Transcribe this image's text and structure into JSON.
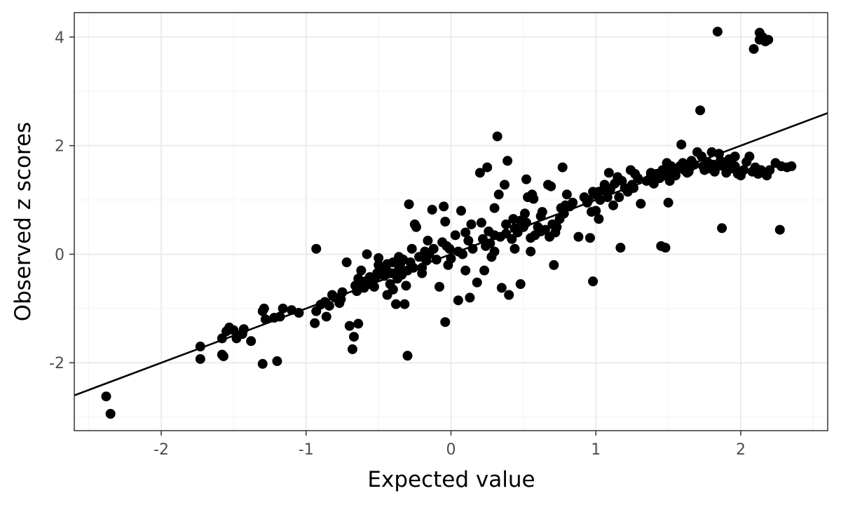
{
  "chart_data": {
    "type": "scatter",
    "xlabel": "Expected value",
    "ylabel": "Observed z scores",
    "xlim": [
      -2.6,
      2.6
    ],
    "ylim": [
      -3.25,
      4.45
    ],
    "x_ticks": [
      -2,
      -1,
      0,
      1,
      2
    ],
    "y_ticks": [
      -2,
      0,
      2,
      4
    ],
    "x_tick_labels": [
      "-2",
      "-1",
      "0",
      "1",
      "2"
    ],
    "y_tick_labels": [
      "-2",
      "0",
      "2",
      "4"
    ],
    "grid": true,
    "legend": "none",
    "point_color": "#000000",
    "line_color": "#000000",
    "panel_border_color": "#333333",
    "grid_major_color": "#ebebeb",
    "grid_minor_color": "#f4f4f4",
    "reference_line": {
      "intercept": 0.0,
      "slope": 1.0
    },
    "points": [
      [
        -2.38,
        -2.62
      ],
      [
        -2.35,
        -2.94
      ],
      [
        -1.73,
        -1.7
      ],
      [
        -1.73,
        -1.93
      ],
      [
        -1.58,
        -1.85
      ],
      [
        -1.57,
        -1.88
      ],
      [
        -1.58,
        -1.55
      ],
      [
        -1.55,
        -1.42
      ],
      [
        -1.53,
        -1.35
      ],
      [
        -1.5,
        -1.4
      ],
      [
        -1.48,
        -1.55
      ],
      [
        -1.44,
        -1.47
      ],
      [
        -1.43,
        -1.38
      ],
      [
        -1.38,
        -1.6
      ],
      [
        -1.3,
        -2.02
      ],
      [
        -1.29,
        -1.0
      ],
      [
        -1.3,
        -1.05
      ],
      [
        -1.28,
        -1.2
      ],
      [
        -1.22,
        -1.17
      ],
      [
        -1.2,
        -1.97
      ],
      [
        -1.18,
        -1.15
      ],
      [
        -1.16,
        -1.0
      ],
      [
        -1.1,
        -1.03
      ],
      [
        -1.05,
        -1.08
      ],
      [
        -0.94,
        -1.27
      ],
      [
        -0.93,
        0.1
      ],
      [
        -0.93,
        -1.05
      ],
      [
        -0.9,
        -0.93
      ],
      [
        -0.87,
        -0.88
      ],
      [
        -0.86,
        -1.15
      ],
      [
        -0.84,
        -0.95
      ],
      [
        -0.82,
        -0.75
      ],
      [
        -0.8,
        -0.8
      ],
      [
        -0.77,
        -0.9
      ],
      [
        -0.76,
        -0.83
      ],
      [
        -0.75,
        -0.7
      ],
      [
        -0.72,
        -0.15
      ],
      [
        -0.7,
        -1.32
      ],
      [
        -0.68,
        -1.75
      ],
      [
        -0.67,
        -1.52
      ],
      [
        -0.66,
        -0.58
      ],
      [
        -0.65,
        -0.68
      ],
      [
        -0.64,
        -1.28
      ],
      [
        -0.64,
        -0.45
      ],
      [
        -0.62,
        -0.55
      ],
      [
        -0.6,
        -0.62
      ],
      [
        -0.59,
        -0.5
      ],
      [
        -0.58,
        0.0
      ],
      [
        -0.56,
        -0.55
      ],
      [
        -0.53,
        -0.6
      ],
      [
        -0.52,
        -0.42
      ],
      [
        -0.51,
        -0.35
      ],
      [
        -0.5,
        -0.2
      ],
      [
        -0.5,
        -0.07
      ],
      [
        -0.48,
        -0.3
      ],
      [
        -0.46,
        -0.4
      ],
      [
        -0.45,
        -0.25
      ],
      [
        -0.44,
        -0.75
      ],
      [
        -0.42,
        -0.55
      ],
      [
        -0.41,
        -0.35
      ],
      [
        -0.4,
        -0.15
      ],
      [
        -0.4,
        -0.65
      ],
      [
        -0.38,
        -0.92
      ],
      [
        -0.37,
        -0.45
      ],
      [
        -0.36,
        -0.28
      ],
      [
        -0.35,
        -0.18
      ],
      [
        -0.34,
        -0.38
      ],
      [
        -0.33,
        -0.1
      ],
      [
        -0.32,
        -0.92
      ],
      [
        -0.31,
        -0.58
      ],
      [
        -0.3,
        -0.3
      ],
      [
        -0.3,
        -1.87
      ],
      [
        -0.29,
        0.92
      ],
      [
        -0.28,
        -0.15
      ],
      [
        -0.27,
        0.1
      ],
      [
        -0.26,
        -0.25
      ],
      [
        -0.25,
        0.55
      ],
      [
        -0.24,
        0.5
      ],
      [
        -0.22,
        -0.05
      ],
      [
        -0.2,
        -0.35
      ],
      [
        -0.18,
        0.05
      ],
      [
        -0.17,
        -0.12
      ],
      [
        -0.15,
        0.0
      ],
      [
        -0.13,
        0.82
      ],
      [
        -0.12,
        0.1
      ],
      [
        -0.1,
        -0.1
      ],
      [
        -0.08,
        -0.6
      ],
      [
        -0.06,
        0.22
      ],
      [
        -0.05,
        0.88
      ],
      [
        -0.04,
        0.6
      ],
      [
        -0.04,
        -1.25
      ],
      [
        -0.03,
        0.15
      ],
      [
        -0.02,
        -0.2
      ],
      [
        -0.01,
        0.1
      ],
      [
        0.0,
        -0.08
      ],
      [
        0.03,
        0.35
      ],
      [
        0.05,
        0.05
      ],
      [
        0.05,
        -0.85
      ],
      [
        0.07,
        0.8
      ],
      [
        0.08,
        0.0
      ],
      [
        0.1,
        -0.3
      ],
      [
        0.12,
        0.25
      ],
      [
        0.13,
        -0.8
      ],
      [
        0.14,
        0.55
      ],
      [
        0.15,
        0.1
      ],
      [
        0.18,
        -0.52
      ],
      [
        0.2,
        1.5
      ],
      [
        0.21,
        0.58
      ],
      [
        0.22,
        0.28
      ],
      [
        0.23,
        -0.3
      ],
      [
        0.24,
        0.15
      ],
      [
        0.25,
        1.6
      ],
      [
        0.26,
        0.42
      ],
      [
        0.27,
        0.2
      ],
      [
        0.28,
        -0.05
      ],
      [
        0.3,
        0.35
      ],
      [
        0.3,
        0.85
      ],
      [
        0.32,
        2.17
      ],
      [
        0.33,
        1.1
      ],
      [
        0.34,
        0.32
      ],
      [
        0.35,
        -0.62
      ],
      [
        0.37,
        1.28
      ],
      [
        0.38,
        0.55
      ],
      [
        0.38,
        0.38
      ],
      [
        0.39,
        1.72
      ],
      [
        0.4,
        -0.75
      ],
      [
        0.42,
        0.28
      ],
      [
        0.43,
        0.65
      ],
      [
        0.44,
        0.1
      ],
      [
        0.46,
        0.4
      ],
      [
        0.48,
        0.62
      ],
      [
        0.48,
        -0.55
      ],
      [
        0.5,
        0.5
      ],
      [
        0.51,
        0.75
      ],
      [
        0.52,
        1.38
      ],
      [
        0.52,
        0.58
      ],
      [
        0.53,
        1.05
      ],
      [
        0.55,
        0.05
      ],
      [
        0.55,
        0.3
      ],
      [
        0.56,
        1.1
      ],
      [
        0.57,
        1.02
      ],
      [
        0.6,
        0.5
      ],
      [
        0.62,
        0.7
      ],
      [
        0.63,
        0.78
      ],
      [
        0.65,
        0.45
      ],
      [
        0.67,
        1.28
      ],
      [
        0.68,
        0.32
      ],
      [
        0.69,
        1.25
      ],
      [
        0.7,
        0.55
      ],
      [
        0.71,
        -0.2
      ],
      [
        0.72,
        0.4
      ],
      [
        0.73,
        0.5
      ],
      [
        0.75,
        0.65
      ],
      [
        0.76,
        0.85
      ],
      [
        0.77,
        1.6
      ],
      [
        0.78,
        0.75
      ],
      [
        0.79,
        0.9
      ],
      [
        0.8,
        1.1
      ],
      [
        0.82,
        0.88
      ],
      [
        0.88,
        0.32
      ],
      [
        0.92,
        1.05
      ],
      [
        0.94,
        0.95
      ],
      [
        0.95,
        1.0
      ],
      [
        0.96,
        0.3
      ],
      [
        0.97,
        0.78
      ],
      [
        0.98,
        1.15
      ],
      [
        0.98,
        -0.5
      ],
      [
        1.0,
        0.8
      ],
      [
        1.01,
        1.08
      ],
      [
        1.02,
        0.65
      ],
      [
        1.03,
        1.0
      ],
      [
        1.05,
        1.18
      ],
      [
        1.06,
        1.28
      ],
      [
        1.08,
        1.05
      ],
      [
        1.09,
        1.5
      ],
      [
        1.1,
        1.2
      ],
      [
        1.12,
        0.9
      ],
      [
        1.13,
        1.3
      ],
      [
        1.15,
        1.42
      ],
      [
        1.16,
        1.05
      ],
      [
        1.17,
        0.12
      ],
      [
        1.18,
        1.35
      ],
      [
        1.2,
        1.22
      ],
      [
        1.22,
        1.15
      ],
      [
        1.24,
        1.55
      ],
      [
        1.25,
        1.28
      ],
      [
        1.27,
        1.48
      ],
      [
        1.29,
        1.4
      ],
      [
        1.31,
        0.93
      ],
      [
        1.35,
        1.35
      ],
      [
        1.38,
        1.45
      ],
      [
        1.4,
        1.3
      ],
      [
        1.42,
        1.48
      ],
      [
        1.44,
        1.4
      ],
      [
        1.45,
        0.15
      ],
      [
        1.46,
        1.55
      ],
      [
        1.47,
        1.45
      ],
      [
        1.48,
        0.12
      ],
      [
        1.49,
        1.68
      ],
      [
        1.5,
        1.48
      ],
      [
        1.5,
        0.95
      ],
      [
        1.51,
        1.35
      ],
      [
        1.52,
        1.62
      ],
      [
        1.53,
        1.5
      ],
      [
        1.55,
        1.45
      ],
      [
        1.57,
        1.58
      ],
      [
        1.59,
        2.02
      ],
      [
        1.6,
        1.68
      ],
      [
        1.61,
        1.55
      ],
      [
        1.63,
        1.5
      ],
      [
        1.65,
        1.6
      ],
      [
        1.66,
        1.72
      ],
      [
        1.68,
        1.65
      ],
      [
        1.7,
        1.88
      ],
      [
        1.72,
        2.65
      ],
      [
        1.73,
        1.8
      ],
      [
        1.74,
        1.62
      ],
      [
        1.75,
        1.55
      ],
      [
        1.77,
        1.7
      ],
      [
        1.78,
        1.58
      ],
      [
        1.8,
        1.88
      ],
      [
        1.81,
        1.65
      ],
      [
        1.82,
        1.52
      ],
      [
        1.83,
        1.6
      ],
      [
        1.84,
        4.1
      ],
      [
        1.85,
        1.85
      ],
      [
        1.86,
        1.72
      ],
      [
        1.87,
        0.48
      ],
      [
        1.88,
        1.62
      ],
      [
        1.9,
        1.5
      ],
      [
        1.92,
        1.68
      ],
      [
        1.94,
        1.58
      ],
      [
        1.96,
        1.8
      ],
      [
        1.98,
        1.48
      ],
      [
        2.0,
        1.45
      ],
      [
        2.02,
        1.55
      ],
      [
        2.04,
        1.7
      ],
      [
        2.06,
        1.8
      ],
      [
        2.08,
        1.52
      ],
      [
        2.09,
        3.78
      ],
      [
        2.1,
        1.6
      ],
      [
        2.12,
        1.48
      ],
      [
        2.13,
        4.08
      ],
      [
        2.13,
        3.95
      ],
      [
        2.14,
        1.55
      ],
      [
        2.15,
        4.0
      ],
      [
        2.16,
        1.5
      ],
      [
        2.17,
        3.92
      ],
      [
        2.18,
        1.45
      ],
      [
        2.19,
        3.95
      ],
      [
        2.2,
        1.55
      ],
      [
        2.24,
        1.68
      ],
      [
        2.27,
        0.45
      ],
      [
        2.28,
        1.62
      ],
      [
        2.32,
        1.6
      ],
      [
        2.35,
        1.62
      ],
      [
        -0.16,
        0.25
      ],
      [
        -0.36,
        -0.05
      ],
      [
        0.44,
        0.48
      ],
      [
        -0.2,
        -0.25
      ],
      [
        0.62,
        0.42
      ],
      [
        1.38,
        1.5
      ],
      [
        1.58,
        1.62
      ],
      [
        1.92,
        1.75
      ],
      [
        1.02,
        1.15
      ],
      [
        0.1,
        0.4
      ],
      [
        -0.56,
        -0.42
      ],
      [
        0.3,
        0.05
      ],
      [
        -0.44,
        -0.18
      ],
      [
        0.84,
        0.95
      ],
      [
        1.26,
        1.22
      ],
      [
        0.58,
        0.35
      ],
      [
        -0.62,
        -0.3
      ],
      [
        1.64,
        1.52
      ],
      [
        1.96,
        1.62
      ]
    ]
  }
}
